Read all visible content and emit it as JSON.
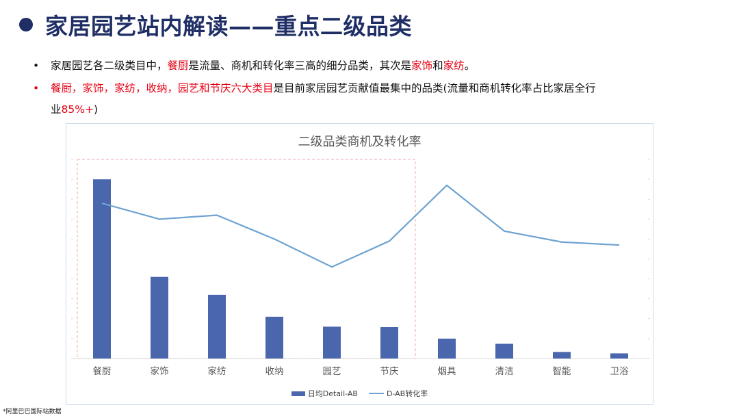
{
  "header": {
    "title": "家居园艺站内解读——重点二级品类"
  },
  "bullets": [
    {
      "segments": [
        {
          "text": "家居园艺各二级类目中，",
          "color": "black"
        },
        {
          "text": "餐厨",
          "color": "red"
        },
        {
          "text": "是流量、商机和转化率三高的细分品类，其次是",
          "color": "black"
        },
        {
          "text": "家饰",
          "color": "red"
        },
        {
          "text": "和",
          "color": "black"
        },
        {
          "text": "家纺",
          "color": "red"
        },
        {
          "text": "。",
          "color": "black"
        }
      ]
    },
    {
      "line1": [
        {
          "text": "餐厨，家饰，家纺，收纳，园艺和节庆六大类目",
          "color": "red"
        },
        {
          "text": "是目前家居园艺贡献值最集中的品类(流量和商机转化率占比家居全行",
          "color": "black"
        }
      ],
      "line2": [
        {
          "text": "业",
          "color": "black"
        },
        {
          "text": "85%+",
          "color": "red"
        },
        {
          "text": ")",
          "color": "black"
        }
      ]
    }
  ],
  "chart_data": {
    "type": "bar",
    "title": "二级品类商机及转化率",
    "categories": [
      "餐厨",
      "家饰",
      "家纺",
      "收纳",
      "园艺",
      "节庆",
      "烟具",
      "清洁",
      "智能",
      "卫浴"
    ],
    "series": [
      {
        "name": "日均Detail-AB",
        "type": "bar",
        "values": [
          90,
          41,
          32,
          21,
          16,
          15.8,
          10,
          7.4,
          3.3,
          2.6
        ]
      },
      {
        "name": "D-AB转化率",
        "type": "line",
        "values": [
          78,
          70,
          72,
          60,
          46,
          59,
          87,
          64,
          58.5,
          57
        ]
      }
    ],
    "ylim": [
      0,
      100
    ],
    "legend_position": "bottom",
    "highlight_box": {
      "from_category": "餐厨",
      "to_category": "节庆"
    },
    "colors": {
      "bar": "#4a66ad",
      "line": "#6fa3d2",
      "highlight": "#f4b8be"
    }
  },
  "footnote": "*阿里巴巴国际站数据"
}
